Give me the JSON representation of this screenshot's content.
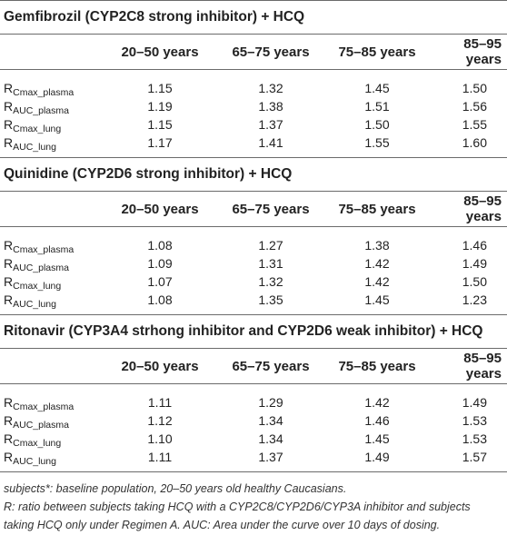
{
  "columns": [
    "20–50 years",
    "65–75 years",
    "75–85 years",
    "85–95 years"
  ],
  "sections": [
    {
      "title": "Gemfibrozil (CYP2C8 strong inhibitor) + HCQ",
      "rows": [
        {
          "label_main": "R",
          "label_sub": "Cmax_plasma",
          "values": [
            "1.15",
            "1.32",
            "1.45",
            "1.50"
          ]
        },
        {
          "label_main": "R",
          "label_sub": "AUC_plasma",
          "values": [
            "1.19",
            "1.38",
            "1.51",
            "1.56"
          ]
        },
        {
          "label_main": "R",
          "label_sub": "Cmax_lung",
          "values": [
            "1.15",
            "1.37",
            "1.50",
            "1.55"
          ]
        },
        {
          "label_main": "R",
          "label_sub": "AUC_lung",
          "values": [
            "1.17",
            "1.41",
            "1.55",
            "1.60"
          ]
        }
      ]
    },
    {
      "title": "Quinidine (CYP2D6 strong inhibitor) + HCQ",
      "rows": [
        {
          "label_main": "R",
          "label_sub": "Cmax_plasma",
          "values": [
            "1.08",
            "1.27",
            "1.38",
            "1.46"
          ]
        },
        {
          "label_main": "R",
          "label_sub": "AUC_plasma",
          "values": [
            "1.09",
            "1.31",
            "1.42",
            "1.49"
          ]
        },
        {
          "label_main": "R",
          "label_sub": "Cmax_lung",
          "values": [
            "1.07",
            "1.32",
            "1.42",
            "1.50"
          ]
        },
        {
          "label_main": "R",
          "label_sub": "AUC_lung",
          "values": [
            "1.08",
            "1.35",
            "1.45",
            "1.23"
          ]
        }
      ]
    },
    {
      "title": "Ritonavir (CYP3A4 strhong inhibitor and CYP2D6 weak inhibitor) + HCQ",
      "rows": [
        {
          "label_main": "R",
          "label_sub": "Cmax_plasma",
          "values": [
            "1.11",
            "1.29",
            "1.42",
            "1.49"
          ]
        },
        {
          "label_main": "R",
          "label_sub": "AUC_plasma",
          "values": [
            "1.12",
            "1.34",
            "1.46",
            "1.53"
          ]
        },
        {
          "label_main": "R",
          "label_sub": "Cmax_lung",
          "values": [
            "1.10",
            "1.34",
            "1.45",
            "1.53"
          ]
        },
        {
          "label_main": "R",
          "label_sub": "AUC_lung",
          "values": [
            "1.11",
            "1.37",
            "1.49",
            "1.57"
          ]
        }
      ]
    }
  ],
  "footnotes": [
    "subjects*: baseline population, 20–50 years old healthy Caucasians.",
    "R: ratio between subjects taking HCQ with a CYP2C8/CYP2D6/CYP3A inhibitor and subjects taking HCQ only under Regimen A. AUC: Area under the curve over 10 days of dosing."
  ]
}
